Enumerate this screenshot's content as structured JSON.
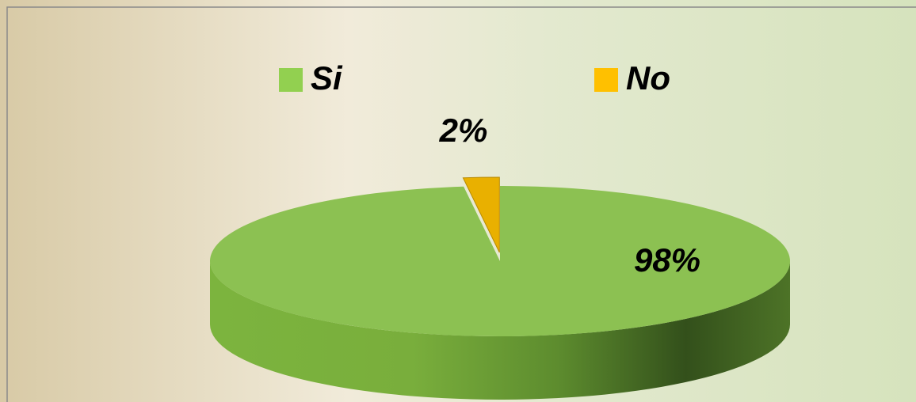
{
  "chart_data": {
    "type": "pie",
    "categories": [
      "Si",
      "No"
    ],
    "values": [
      98,
      2
    ],
    "value_labels": [
      "98%",
      "2%"
    ],
    "colors": [
      "#8cc152",
      "#e9b000"
    ],
    "legend_colors": [
      "#92d050",
      "#ffc000"
    ],
    "legend": "top"
  }
}
